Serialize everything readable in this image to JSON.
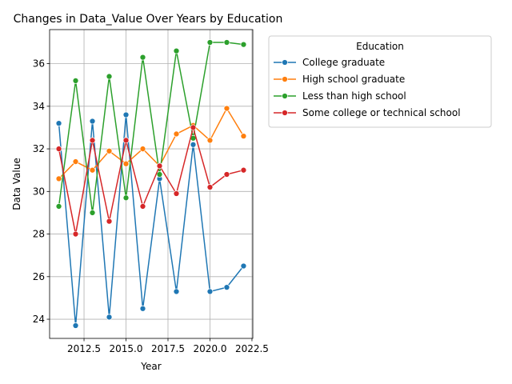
{
  "chart_data": {
    "type": "line",
    "title": "Changes in Data_Value Over Years by Education",
    "xlabel": "Year",
    "ylabel": "Data Value",
    "xlim": [
      2010.45,
      2022.55
    ],
    "ylim": [
      23.1,
      37.6
    ],
    "xticks": [
      2012.5,
      2015.0,
      2017.5,
      2020.0,
      2022.5
    ],
    "xtick_labels": [
      "2012.5",
      "2015.0",
      "2017.5",
      "2020.0",
      "2022.5"
    ],
    "yticks": [
      24,
      26,
      28,
      30,
      32,
      34,
      36
    ],
    "ytick_labels": [
      "24",
      "26",
      "28",
      "30",
      "32",
      "34",
      "36"
    ],
    "grid": true,
    "legend": {
      "title": "Education",
      "placement": "outside-right"
    },
    "x": [
      2011,
      2012,
      2013,
      2014,
      2015,
      2016,
      2017,
      2018,
      2019,
      2020,
      2021,
      2022
    ],
    "series": [
      {
        "name": "College graduate",
        "color": "#1f77b4",
        "values": [
          33.2,
          23.7,
          33.3,
          24.1,
          33.6,
          24.5,
          30.6,
          25.3,
          32.2,
          25.3,
          25.5,
          26.5
        ]
      },
      {
        "name": "High school graduate",
        "color": "#ff7f0e",
        "values": [
          30.6,
          31.4,
          31.0,
          31.9,
          31.3,
          32.0,
          31.2,
          32.7,
          33.1,
          32.4,
          33.9,
          32.6
        ]
      },
      {
        "name": "Less than high school",
        "color": "#2ca02c",
        "values": [
          29.3,
          35.2,
          29.0,
          35.4,
          29.7,
          36.3,
          30.8,
          36.6,
          32.5,
          37.0,
          37.0,
          36.9
        ]
      },
      {
        "name": "Some college or technical school",
        "color": "#d62728",
        "values": [
          32.0,
          28.0,
          32.4,
          28.6,
          32.4,
          29.3,
          31.2,
          29.9,
          33.0,
          30.2,
          30.8,
          31.0
        ]
      }
    ]
  }
}
